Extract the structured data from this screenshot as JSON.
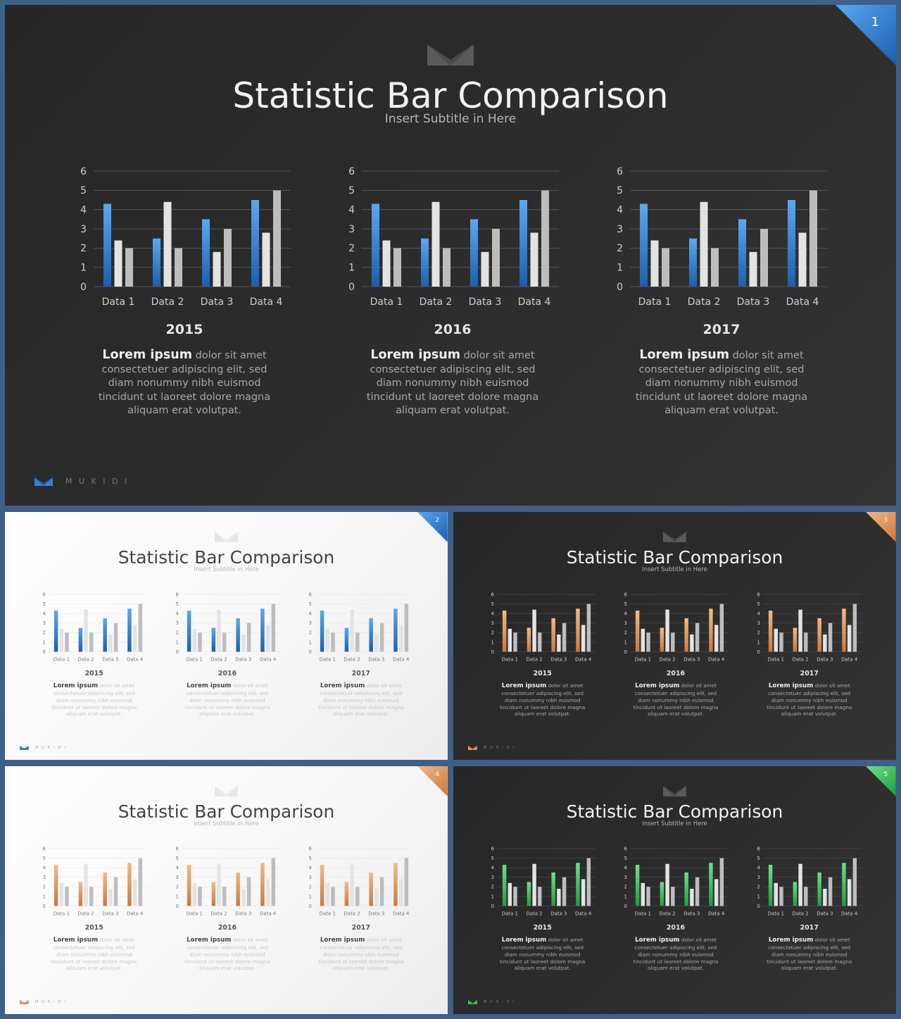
{
  "palettes": {
    "blue": {
      "accent": "#2f86d8",
      "accent_light": "#5aa8ef",
      "accent_dark": "#1a5fb0"
    },
    "orange": {
      "accent": "#e6985a",
      "accent_light": "#f2b985",
      "accent_dark": "#c9793c"
    },
    "green": {
      "accent": "#35c758",
      "accent_light": "#6be08a",
      "accent_dark": "#1f9e3c"
    }
  },
  "gray_colors": {
    "light": "#e3e3e3",
    "mid": "#bdbdbd"
  },
  "brand_name": "M U K I D I",
  "slides": [
    {
      "number": "1",
      "theme": "dark",
      "palette": "blue",
      "title": "Statistic Bar Comparison",
      "subtitle": "Insert Subtitle in Here",
      "columns": [
        {
          "year": "2015",
          "lead": "Lorem ipsum",
          "body": "dolor sit amet consectetuer adipiscing elit, sed diam nonummy nibh euismod tincidunt ut laoreet dolore magna aliquam erat volutpat."
        },
        {
          "year": "2016",
          "lead": "Lorem ipsum",
          "body": "dolor sit amet consectetuer adipiscing elit, sed diam nonummy nibh euismod tincidunt ut laoreet dolore magna aliquam erat volutpat."
        },
        {
          "year": "2017",
          "lead": "Lorem ipsum",
          "body": "dolor sit amet consectetuer adipiscing elit, sed diam nonummy nibh euismod tincidunt ut laoreet dolore magna aliquam erat volutpat."
        }
      ]
    },
    {
      "number": "2",
      "theme": "light",
      "palette": "blue",
      "title": "Statistic Bar Comparison",
      "subtitle": "Insert Subtitle in Here",
      "columns": [
        {
          "year": "2015",
          "lead": "Lorem ipsum",
          "body": "dolor sit amet consectetuer adipiscing elit, sed diam nonummy nibh euismod tincidunt ut laoreet dolore magna aliquam erat volutpat."
        },
        {
          "year": "2016",
          "lead": "Lorem ipsum",
          "body": "dolor sit amet consectetuer adipiscing elit, sed diam nonummy nibh euismod tincidunt ut laoreet dolore magna aliquam erat volutpat."
        },
        {
          "year": "2017",
          "lead": "Lorem ipsum",
          "body": "dolor sit amet consectetuer adipiscing elit, sed diam nonummy nibh euismod tincidunt ut laoreet dolore magna aliquam erat volutpat."
        }
      ]
    },
    {
      "number": "3",
      "theme": "dark",
      "palette": "orange",
      "title": "Statistic Bar Comparison",
      "subtitle": "Insert Subtitle in Here",
      "columns": [
        {
          "year": "2015",
          "lead": "Lorem ipsum",
          "body": "dolor sit amet consectetuer adipiscing elit, sed diam nonummy nibh euismod tincidunt ut laoreet dolore magna aliquam erat volutpat."
        },
        {
          "year": "2016",
          "lead": "Lorem ipsum",
          "body": "dolor sit amet consectetuer adipiscing elit, sed diam nonummy nibh euismod tincidunt ut laoreet dolore magna aliquam erat volutpat."
        },
        {
          "year": "2017",
          "lead": "Lorem ipsum",
          "body": "dolor sit amet consectetuer adipiscing elit, sed diam nonummy nibh euismod tincidunt ut laoreet dolore magna aliquam erat volutpat."
        }
      ]
    },
    {
      "number": "4",
      "theme": "light",
      "palette": "orange",
      "title": "Statistic Bar Comparison",
      "subtitle": "Insert Subtitle in Here",
      "columns": [
        {
          "year": "2015",
          "lead": "Lorem ipsum",
          "body": "dolor sit amet consectetuer adipiscing elit, sed diam nonummy nibh euismod tincidunt ut laoreet dolore magna aliquam erat volutpat."
        },
        {
          "year": "2016",
          "lead": "Lorem ipsum",
          "body": "dolor sit amet consectetuer adipiscing elit, sed diam nonummy nibh euismod tincidunt ut laoreet dolore magna aliquam erat volutpat."
        },
        {
          "year": "2017",
          "lead": "Lorem ipsum",
          "body": "dolor sit amet consectetuer adipiscing elit, sed diam nonummy nibh euismod tincidunt ut laoreet dolore magna aliquam erat volutpat."
        }
      ]
    },
    {
      "number": "5",
      "theme": "dark",
      "palette": "green",
      "title": "Statistic Bar Comparison",
      "subtitle": "Insert Subtitle in Here",
      "columns": [
        {
          "year": "2015",
          "lead": "Lorem ipsum",
          "body": "dolor sit amet consectetuer adipiscing elit, sed diam nonummy nibh euismod tincidunt ut laoreet dolore magna aliquam erat volutpat."
        },
        {
          "year": "2016",
          "lead": "Lorem ipsum",
          "body": "dolor sit amet consectetuer adipiscing elit, sed diam nonummy nibh euismod tincidunt ut laoreet dolore magna aliquam erat volutpat."
        },
        {
          "year": "2017",
          "lead": "Lorem ipsum",
          "body": "dolor sit amet consectetuer adipiscing elit, sed diam nonummy nibh euismod tincidunt ut laoreet dolore magna aliquam erat volutpat."
        }
      ]
    }
  ],
  "chart_data": {
    "type": "bar",
    "categories": [
      "Data 1",
      "Data 2",
      "Data 3",
      "Data 4"
    ],
    "series": [
      {
        "values": [
          4.3,
          2.5,
          3.5,
          4.5
        ]
      },
      {
        "values": [
          2.4,
          4.4,
          1.8,
          2.8
        ]
      },
      {
        "values": [
          2.0,
          2.0,
          3.0,
          5.0
        ]
      }
    ],
    "ylim": [
      0,
      6
    ],
    "yticks": [
      "0",
      "1",
      "2",
      "3",
      "4",
      "5",
      "6"
    ],
    "grid": true,
    "note": "Same chart repeated three times per slide (2015, 2016, 2017) with identical values"
  }
}
